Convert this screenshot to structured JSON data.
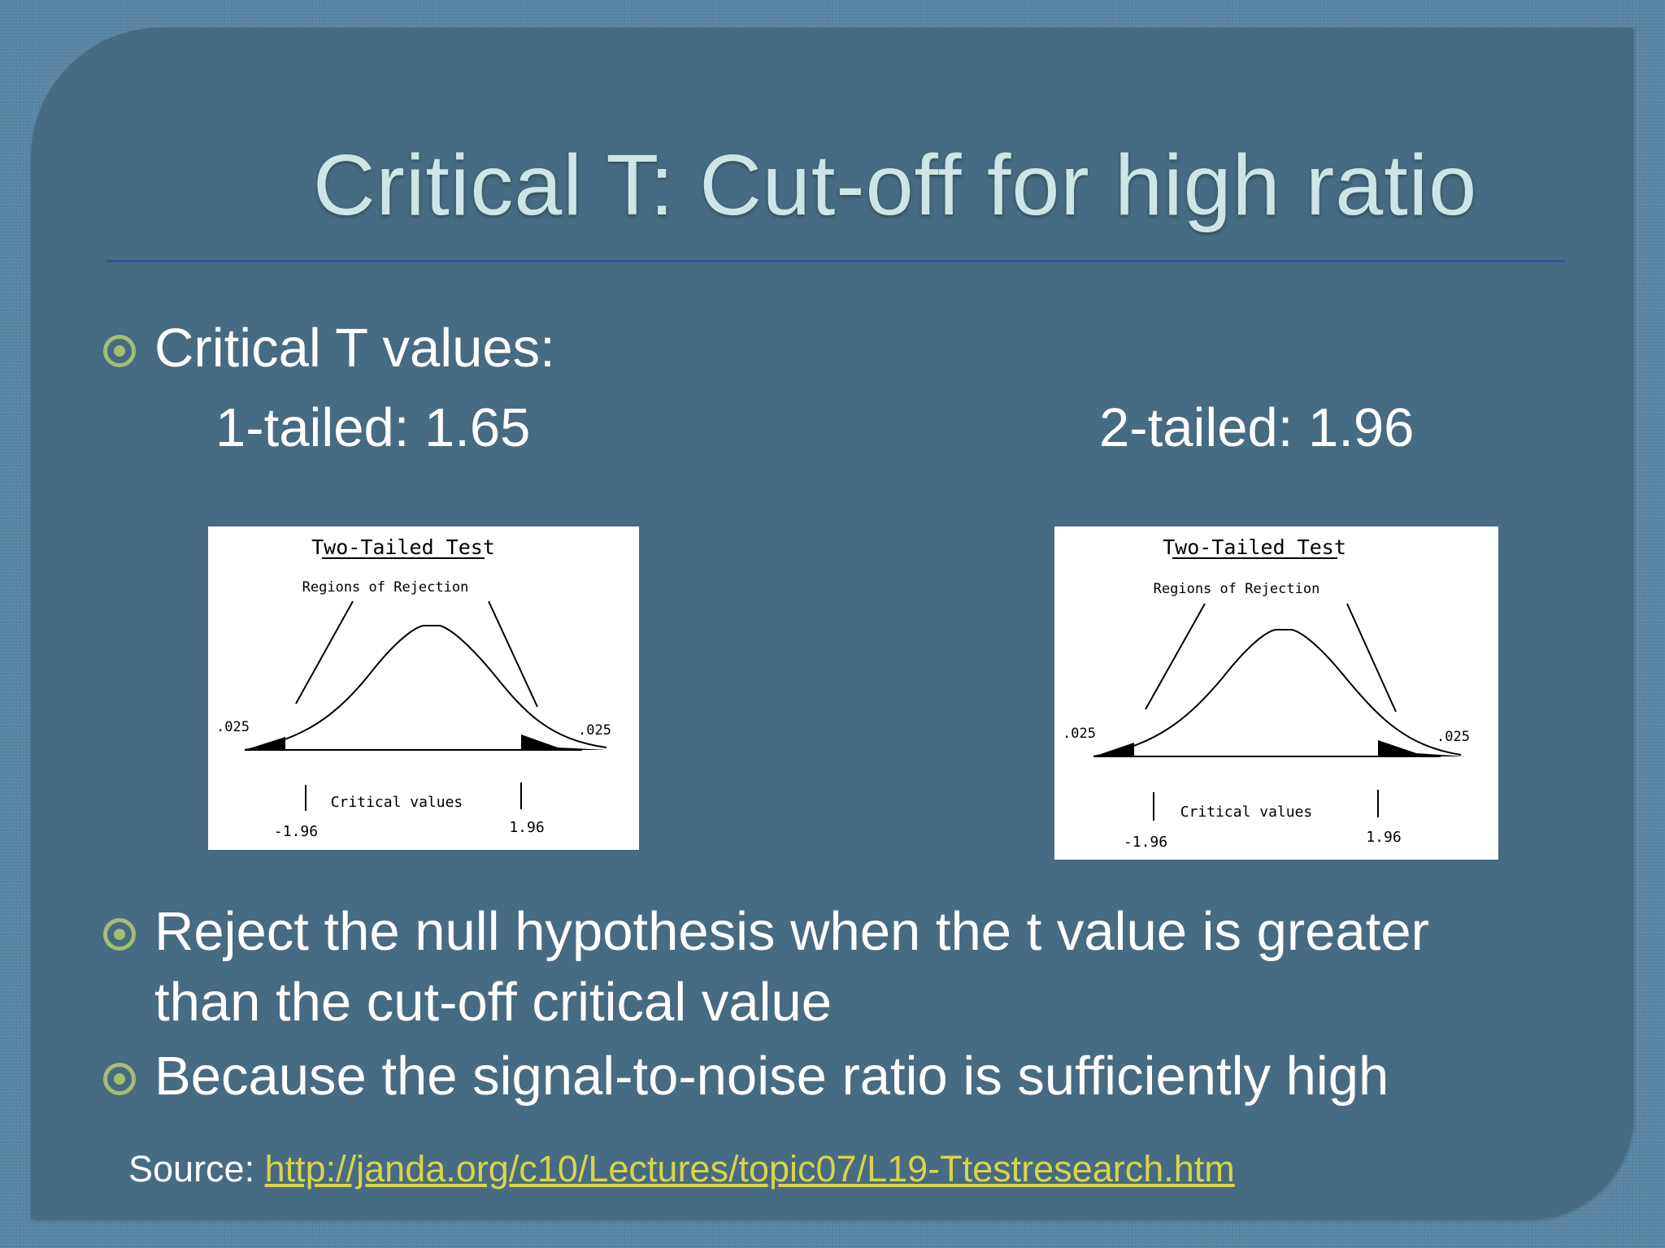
{
  "slide": {
    "title": "Critical T: Cut-off for high ratio",
    "bullets": [
      "Critical T values:",
      "Reject the null hypothesis when the t value is greater",
      "than the cut-off critical value",
      "Because the signal-to-noise ratio is sufficiently high"
    ],
    "one_tailed": "1-tailed: 1.65",
    "two_tailed": "2-tailed: 1.96",
    "source_label": "Source: ",
    "source_link": "http://janda.org/c10/Lectures/topic07/L19-Ttestresearch.htm",
    "accent_color": "#a3bf70",
    "link_color": "#d8d44a"
  },
  "figures": [
    {
      "heading": "Two-Tailed Test",
      "regions_label": "Regions of Rejection",
      "left_alpha": ".025",
      "right_alpha": ".025",
      "critical_label": "Critical values",
      "left_value": "-1.96",
      "right_value": "1.96"
    },
    {
      "heading": "Two-Tailed Test",
      "regions_label": "Regions of Rejection",
      "left_alpha": ".025",
      "right_alpha": ".025",
      "critical_label": "Critical values",
      "left_value": "-1.96",
      "right_value": "1.96"
    }
  ]
}
